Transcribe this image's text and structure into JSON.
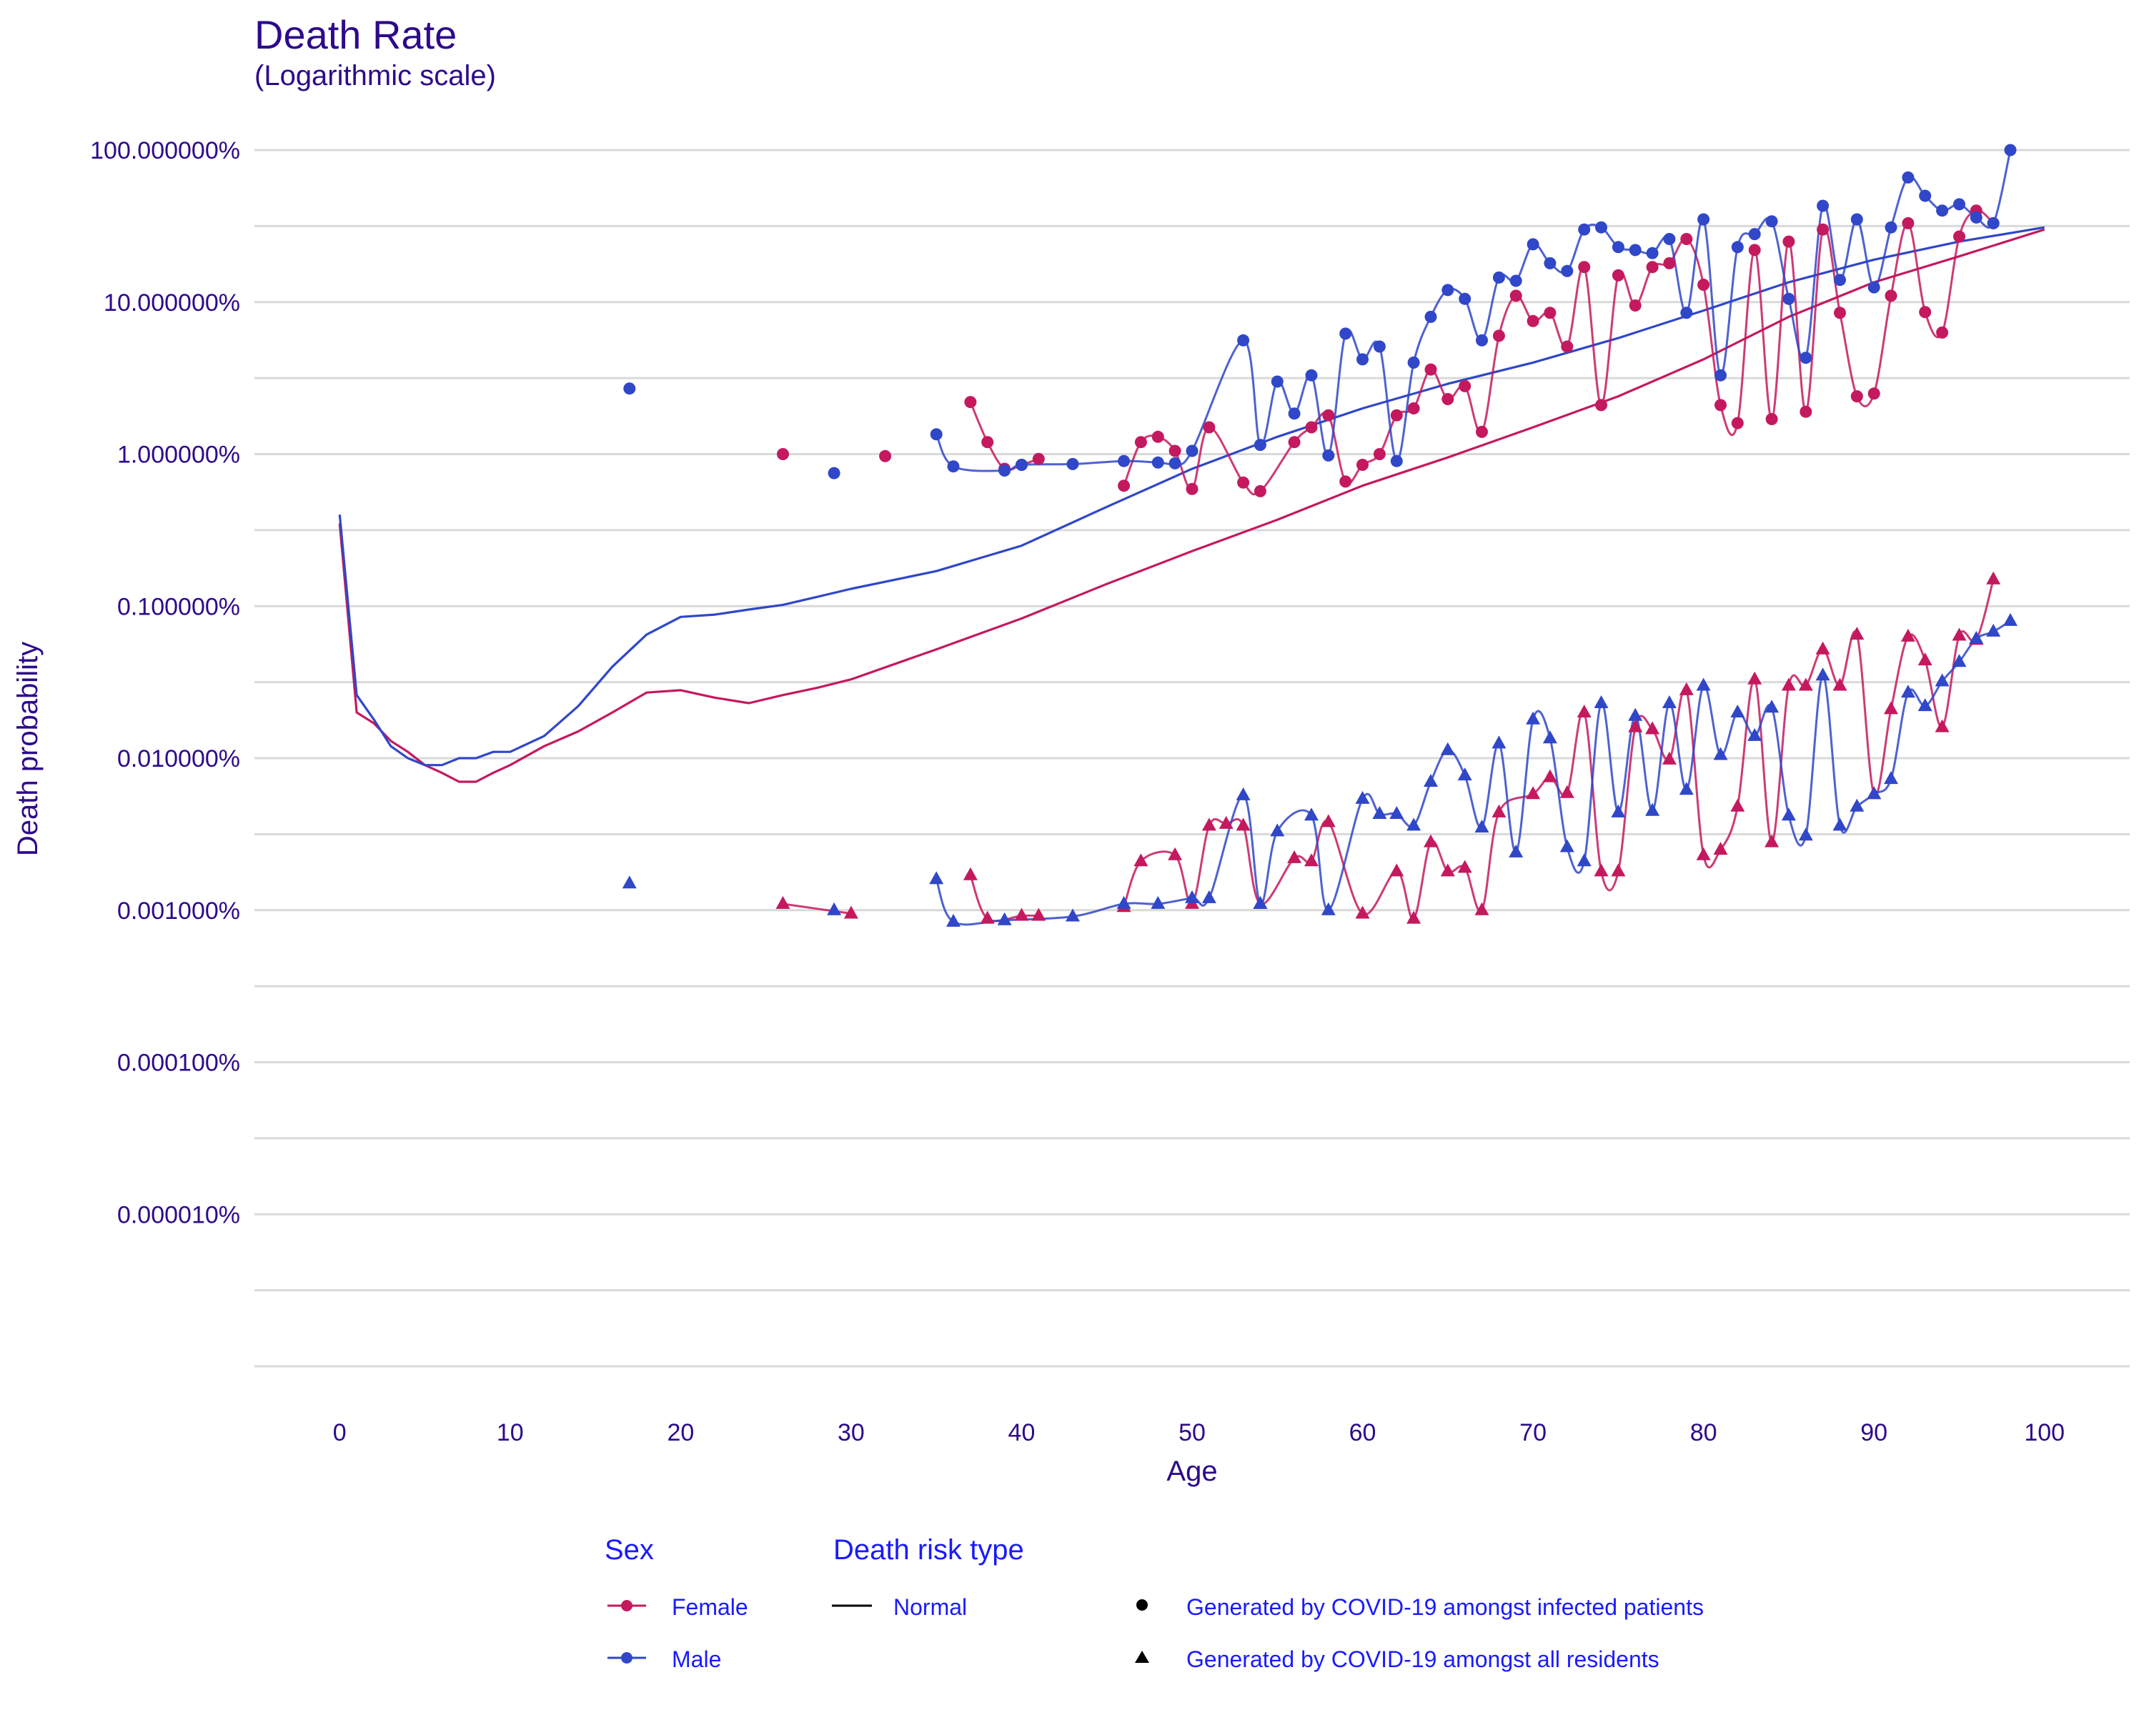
{
  "colors": {
    "female": "#c4195e",
    "male": "#2f47c8",
    "title": "#2d0a8c",
    "axis_text": "#2d0a8c",
    "legend_text": "#1a1aff",
    "grid": "#d9d9d9"
  },
  "chart_data": {
    "type": "line",
    "title": "Death Rate",
    "subtitle": "(Logarithmic scale)",
    "xlabel": "Age",
    "ylabel": "Death probability",
    "x_scale": "linear",
    "y_scale": "log",
    "xlim": [
      -5,
      105
    ],
    "ylim": [
      1e-06,
      100
    ],
    "x_ticks": [
      0,
      10,
      20,
      30,
      40,
      50,
      60,
      70,
      80,
      90,
      100
    ],
    "y_ticks": [
      1e-05,
      0.0001,
      0.001,
      0.01,
      0.1,
      1,
      10,
      100
    ],
    "y_tick_labels": [
      "0.000010%",
      "0.000100%",
      "0.001000%",
      "0.010000%",
      "0.100000%",
      "1.000000%",
      "10.000000%",
      "100.000000%"
    ],
    "grid": true,
    "legend": {
      "placement": "bottom",
      "sex_title": "Sex",
      "type_title": "Death risk type",
      "female": "Female",
      "male": "Male",
      "normal": "Normal",
      "infected": "Generated by COVID-19 amongst infected patients",
      "residents": "Generated by COVID-19 amongst all residents"
    },
    "series": [
      {
        "name": "Female — Normal",
        "sex": "female",
        "kind": "line",
        "x": [
          0,
          1,
          2,
          3,
          4,
          5,
          6,
          7,
          8,
          9,
          10,
          12,
          14,
          16,
          18,
          20,
          22,
          24,
          26,
          28,
          30,
          35,
          40,
          45,
          50,
          55,
          60,
          65,
          70,
          75,
          80,
          85,
          90,
          95,
          100
        ],
        "y": [
          0.35,
          0.02,
          0.017,
          0.013,
          0.011,
          0.009,
          0.008,
          0.007,
          0.007,
          0.008,
          0.009,
          0.012,
          0.015,
          0.02,
          0.027,
          0.028,
          0.025,
          0.023,
          0.026,
          0.029,
          0.033,
          0.052,
          0.083,
          0.14,
          0.23,
          0.37,
          0.62,
          0.95,
          1.5,
          2.4,
          4.2,
          8.0,
          13.5,
          20,
          30
        ]
      },
      {
        "name": "Male — Normal",
        "sex": "male",
        "kind": "line",
        "x": [
          0,
          1,
          2,
          3,
          4,
          5,
          6,
          7,
          8,
          9,
          10,
          12,
          14,
          16,
          18,
          20,
          22,
          24,
          26,
          28,
          30,
          35,
          40,
          45,
          50,
          55,
          60,
          65,
          70,
          75,
          80,
          85,
          90,
          95,
          100
        ],
        "y": [
          0.4,
          0.026,
          0.018,
          0.012,
          0.01,
          0.009,
          0.009,
          0.01,
          0.01,
          0.011,
          0.011,
          0.014,
          0.022,
          0.04,
          0.065,
          0.085,
          0.088,
          0.095,
          0.102,
          0.115,
          0.13,
          0.17,
          0.25,
          0.45,
          0.8,
          1.3,
          2.0,
          2.9,
          4.0,
          5.8,
          8.8,
          13.5,
          19,
          25,
          31
        ]
      },
      {
        "name": "Female — infected patients",
        "sex": "female",
        "kind": "points-circle",
        "x": [
          26,
          32,
          37,
          38,
          39,
          40,
          41,
          46,
          47,
          48,
          49,
          50,
          51,
          53,
          54,
          56,
          57,
          58,
          59,
          60,
          61,
          62,
          63,
          64,
          65,
          66,
          67,
          68,
          69,
          70,
          71,
          72,
          73,
          74,
          75,
          76,
          77,
          78,
          79,
          80,
          81,
          82,
          83,
          84,
          85,
          86,
          87,
          88,
          89,
          90,
          91,
          92,
          93,
          94,
          95,
          96,
          97
        ],
        "y": [
          1.0,
          0.97,
          2.2,
          1.2,
          0.8,
          0.85,
          0.93,
          0.62,
          1.2,
          1.3,
          1.05,
          0.59,
          1.5,
          0.65,
          0.57,
          1.2,
          1.5,
          1.8,
          0.66,
          0.85,
          1.0,
          1.8,
          2.0,
          3.6,
          2.3,
          2.8,
          1.4,
          6.0,
          11,
          7.5,
          8.5,
          5.1,
          17,
          2.1,
          15,
          9.5,
          17,
          18,
          26,
          13,
          2.1,
          1.6,
          22,
          1.7,
          25,
          1.9,
          30,
          8.5,
          2.4,
          2.5,
          11,
          33,
          8.6,
          6.3,
          27,
          40,
          33
        ]
      },
      {
        "name": "Male — infected patients",
        "sex": "male",
        "kind": "points-circle",
        "x": [
          17,
          29,
          35,
          36,
          39,
          40,
          43,
          46,
          48,
          49,
          50,
          53,
          54,
          55,
          56,
          57,
          58,
          59,
          60,
          61,
          62,
          63,
          64,
          65,
          66,
          67,
          68,
          69,
          70,
          71,
          72,
          73,
          74,
          75,
          76,
          77,
          78,
          79,
          80,
          81,
          82,
          83,
          84,
          85,
          86,
          87,
          88,
          89,
          90,
          91,
          92,
          93,
          94,
          95,
          96,
          97,
          98
        ],
        "y": [
          2.7,
          0.75,
          1.35,
          0.83,
          0.78,
          0.85,
          0.86,
          0.9,
          0.88,
          0.87,
          1.05,
          5.6,
          1.15,
          3.0,
          1.85,
          3.3,
          0.98,
          6.2,
          4.2,
          5.1,
          0.9,
          4.0,
          8.0,
          12,
          10.5,
          5.6,
          14.5,
          13.8,
          24,
          18,
          16,
          30,
          31,
          23,
          22,
          21,
          26,
          8.5,
          35,
          3.3,
          23,
          28,
          34,
          10.5,
          4.3,
          43,
          14,
          35,
          12.5,
          31,
          66,
          50,
          40,
          44,
          36,
          33,
          100
        ]
      },
      {
        "name": "Female — all residents",
        "sex": "female",
        "kind": "points-triangle",
        "x": [
          26,
          30,
          37,
          38,
          40,
          41,
          46,
          47,
          49,
          50,
          51,
          52,
          53,
          54,
          56,
          57,
          58,
          60,
          62,
          63,
          64,
          65,
          66,
          67,
          68,
          70,
          71,
          72,
          73,
          74,
          75,
          76,
          77,
          78,
          79,
          80,
          81,
          82,
          83,
          84,
          85,
          86,
          87,
          88,
          89,
          90,
          91,
          92,
          93,
          94,
          95,
          96,
          97
        ],
        "y": [
          0.0011,
          0.00095,
          0.0017,
          0.00088,
          0.00092,
          0.00092,
          0.00105,
          0.0021,
          0.0023,
          0.0011,
          0.0036,
          0.0037,
          0.0036,
          0.0011,
          0.0022,
          0.0021,
          0.0038,
          0.00095,
          0.0018,
          0.00088,
          0.0028,
          0.0018,
          0.0019,
          0.001,
          0.0044,
          0.0058,
          0.0075,
          0.0059,
          0.02,
          0.0018,
          0.0018,
          0.016,
          0.0155,
          0.0098,
          0.028,
          0.0023,
          0.0025,
          0.0048,
          0.033,
          0.0028,
          0.03,
          0.03,
          0.052,
          0.03,
          0.065,
          0.0058,
          0.021,
          0.063,
          0.044,
          0.016,
          0.064,
          0.06,
          0.15
        ]
      },
      {
        "name": "Male — all residents",
        "sex": "male",
        "kind": "points-triangle",
        "x": [
          17,
          29,
          35,
          36,
          39,
          43,
          46,
          48,
          50,
          51,
          53,
          54,
          55,
          57,
          58,
          60,
          61,
          62,
          63,
          64,
          65,
          66,
          67,
          68,
          69,
          70,
          71,
          72,
          73,
          74,
          75,
          76,
          77,
          78,
          79,
          80,
          81,
          82,
          83,
          84,
          85,
          86,
          87,
          88,
          89,
          90,
          91,
          92,
          93,
          94,
          95,
          96,
          97,
          98
        ],
        "y": [
          0.0015,
          0.001,
          0.0016,
          0.00084,
          0.00086,
          0.00091,
          0.0011,
          0.0011,
          0.0012,
          0.0012,
          0.0057,
          0.0011,
          0.0033,
          0.0042,
          0.001,
          0.0054,
          0.0043,
          0.0043,
          0.0036,
          0.007,
          0.0113,
          0.0077,
          0.0035,
          0.0125,
          0.0024,
          0.018,
          0.0135,
          0.0026,
          0.0021,
          0.023,
          0.0044,
          0.019,
          0.0045,
          0.023,
          0.0062,
          0.03,
          0.0105,
          0.02,
          0.014,
          0.0215,
          0.0042,
          0.0031,
          0.035,
          0.0036,
          0.0048,
          0.0058,
          0.0073,
          0.027,
          0.022,
          0.032,
          0.043,
          0.061,
          0.068,
          0.08
        ]
      }
    ]
  }
}
